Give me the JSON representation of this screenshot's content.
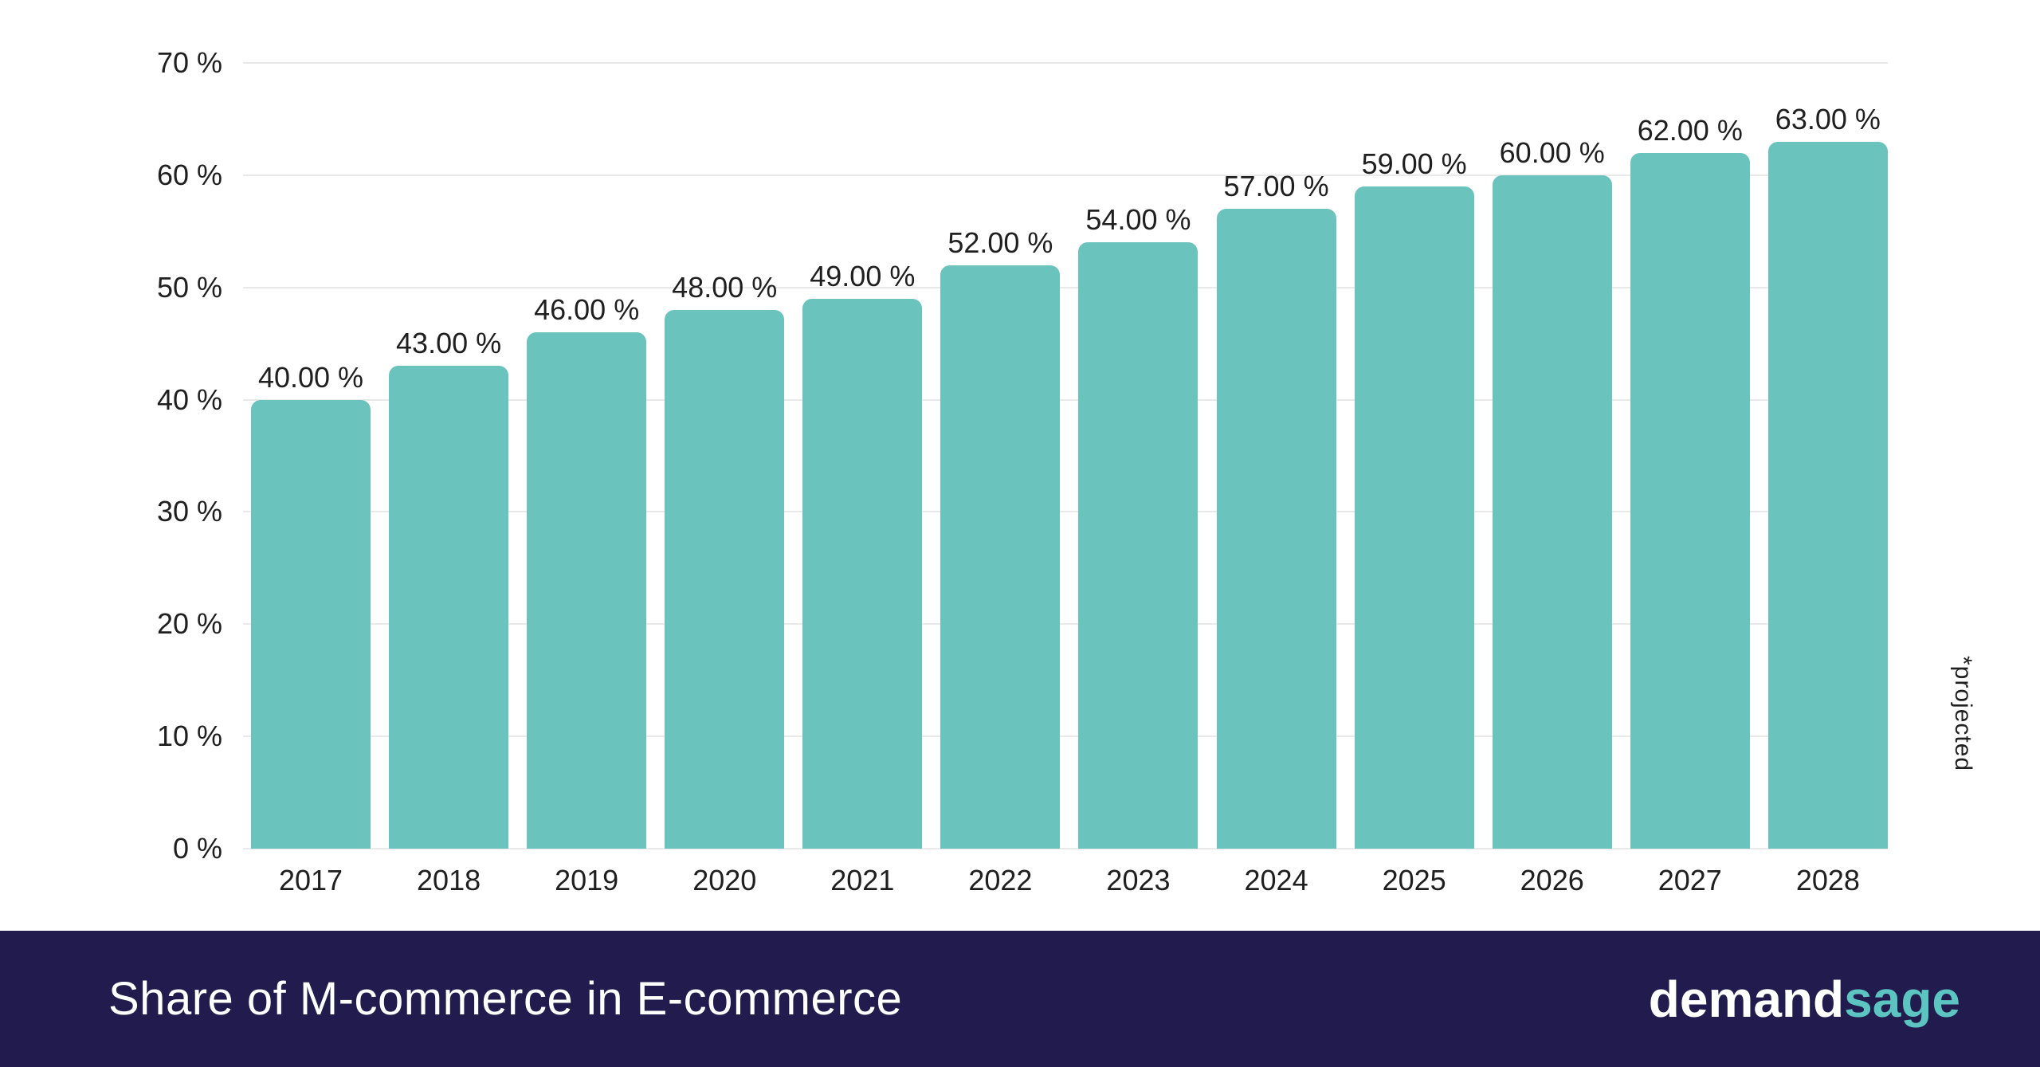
{
  "chart_data": {
    "type": "bar",
    "title": "Share of M-commerce in E-commerce",
    "categories": [
      "2017",
      "2018",
      "2019",
      "2020",
      "2021",
      "2022",
      "2023",
      "2024",
      "2025",
      "2026",
      "2027",
      "2028"
    ],
    "values": [
      40,
      43,
      46,
      48,
      49,
      52,
      54,
      57,
      59,
      60,
      62,
      63
    ],
    "value_labels": [
      "40.00 %",
      "43.00 %",
      "46.00 %",
      "48.00 %",
      "49.00 %",
      "52.00 %",
      "54.00 %",
      "57.00 %",
      "59.00 %",
      "60.00 %",
      "62.00 %",
      "63.00 %"
    ],
    "xlabel": "",
    "ylabel": "",
    "ylim": [
      0,
      70
    ],
    "ytick_step": 10,
    "ytick_labels": [
      "0 %",
      "10 %",
      "20 %",
      "30 %",
      "40 %",
      "50 %",
      "60 %",
      "70 %"
    ],
    "grid": true,
    "legend_position": "none",
    "annotation": "*projected",
    "colors": {
      "bar": "#6ac3bd",
      "grid": "#e9e9e9",
      "label_text": "#1f1f1f",
      "background": "#ffffff"
    }
  },
  "footer": {
    "title": "Share of M-commerce in E-commerce",
    "logo": {
      "white_part": "demand",
      "teal_part": "sage"
    },
    "colors": {
      "background": "#211c4d",
      "logo_teal": "#5cc5c2",
      "title_text": "#ffffff"
    }
  }
}
